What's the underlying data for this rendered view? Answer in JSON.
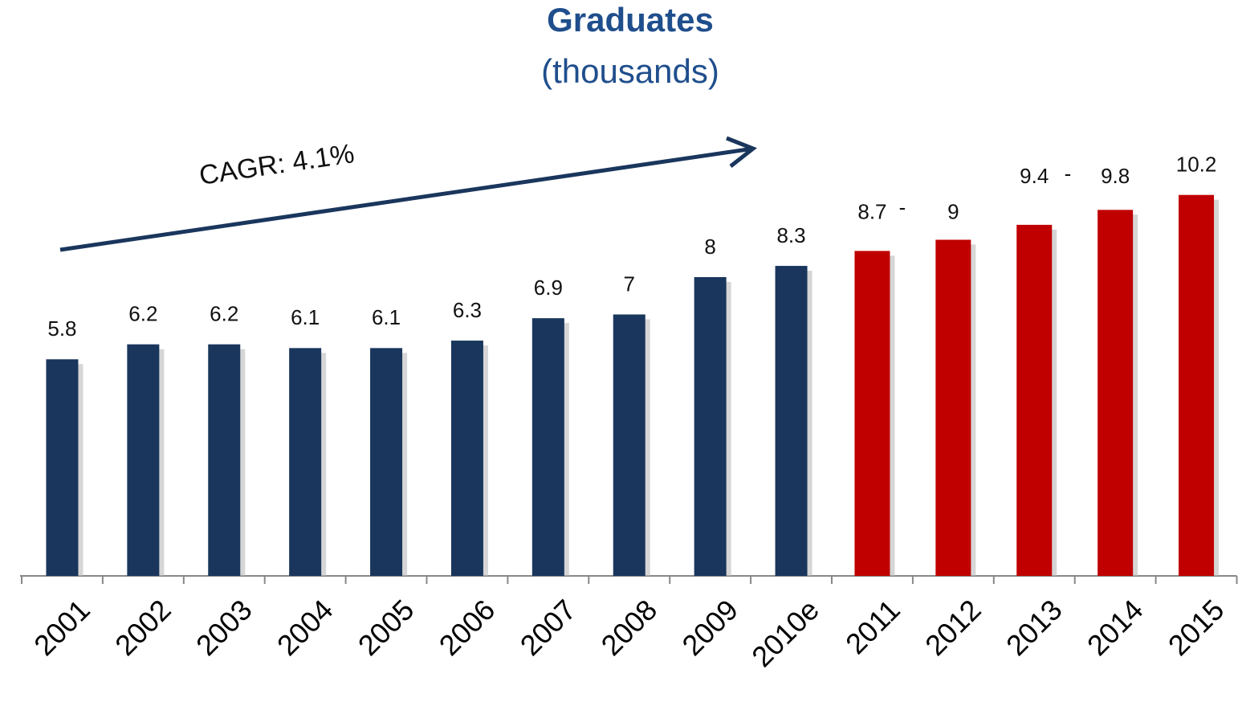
{
  "chart_data": {
    "type": "bar",
    "title": "Graduates",
    "subtitle": "(thousands)",
    "categories": [
      "2001",
      "2002",
      "2003",
      "2004",
      "2005",
      "2006",
      "2007",
      "2008",
      "2009",
      "2010e",
      "2011",
      "2012",
      "2013",
      "2014",
      "2015"
    ],
    "values": [
      5.8,
      6.2,
      6.2,
      6.1,
      6.1,
      6.3,
      6.9,
      7.0,
      8.0,
      8.3,
      8.7,
      9.0,
      9.4,
      9.8,
      10.2
    ],
    "colors": [
      "#1a365d",
      "#1a365d",
      "#1a365d",
      "#1a365d",
      "#1a365d",
      "#1a365d",
      "#1a365d",
      "#1a365d",
      "#1a365d",
      "#1a365d",
      "#c00000",
      "#c00000",
      "#c00000",
      "#c00000",
      "#c00000"
    ],
    "ylim": [
      0,
      15
    ],
    "annotations": [
      "CAGR: 4.1%",
      "-",
      "-"
    ]
  }
}
